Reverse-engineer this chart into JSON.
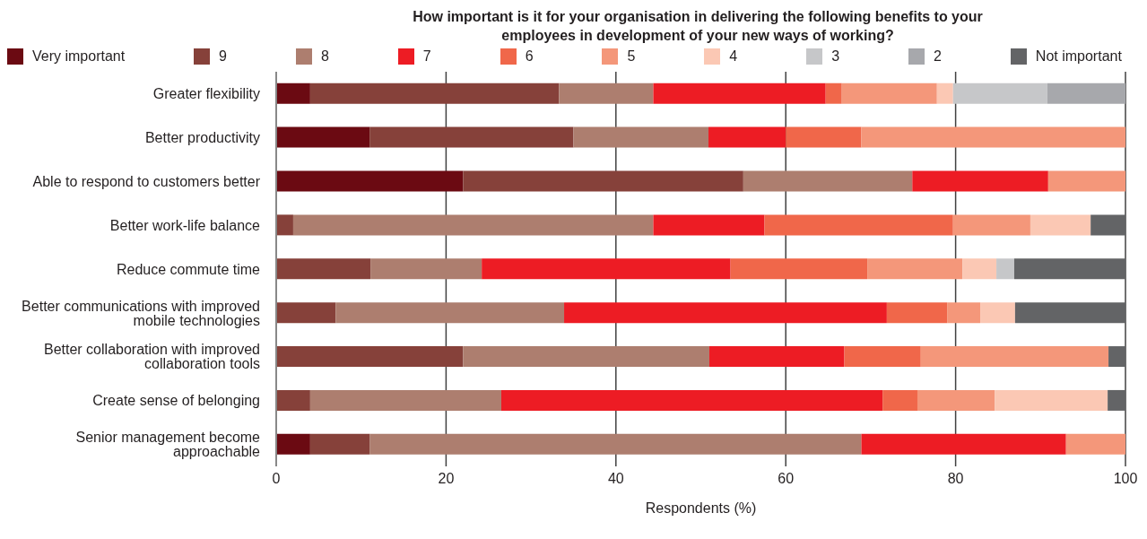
{
  "chart_data": {
    "type": "bar",
    "orientation": "horizontal",
    "stacked": true,
    "title": "How important is it for your organisation in delivering the following benefits to your employees in development of your new ways of working?",
    "xlabel": "Respondents (%)",
    "categories": [
      "Greater flexibility",
      "Better productivity",
      "Able to respond to customers better",
      "Better work-life balance",
      "Reduce commute time",
      "Better communications with improved mobile technologies",
      "Better collaboration with improved collaboration tools",
      "Create sense of belonging",
      "Senior management become approachable"
    ],
    "series": [
      {
        "name": "Very important",
        "color": "#6b0a12",
        "values": [
          4,
          11,
          22,
          0,
          0,
          0,
          0,
          0,
          4
        ]
      },
      {
        "name": "9",
        "color": "#86413a",
        "values": [
          29.3,
          24,
          33,
          2,
          11.1,
          7,
          22,
          4,
          7
        ]
      },
      {
        "name": "8",
        "color": "#ad7e6f",
        "values": [
          11.1,
          15.9,
          19.9,
          42.4,
          13.1,
          26.9,
          29,
          22.5,
          57.9
        ]
      },
      {
        "name": "7",
        "color": "#ed1c24",
        "values": [
          20.3,
          9.1,
          16,
          13.1,
          29.3,
          38,
          15.9,
          44.9,
          24.1
        ]
      },
      {
        "name": "6",
        "color": "#f0674a",
        "values": [
          1.9,
          8.9,
          0,
          22.2,
          16.1,
          7.1,
          9,
          4.1,
          0
        ]
      },
      {
        "name": "5",
        "color": "#f4977a",
        "values": [
          11.2,
          31.1,
          9.1,
          9.1,
          11.2,
          3.9,
          22.1,
          9.1,
          7
        ]
      },
      {
        "name": "4",
        "color": "#fbc8b4",
        "values": [
          1.9,
          0,
          0,
          7.1,
          4,
          4.1,
          0,
          13.3,
          0
        ]
      },
      {
        "name": "3",
        "color": "#c6c7c9",
        "values": [
          11.1,
          0,
          0,
          0,
          2.1,
          0,
          0,
          0,
          0
        ]
      },
      {
        "name": "2",
        "color": "#a7a8ac",
        "values": [
          9.2,
          0,
          0,
          0,
          0,
          0,
          0,
          0,
          0
        ]
      },
      {
        "name": "Not important",
        "color": "#636466",
        "values": [
          0,
          0,
          0,
          4.1,
          13.1,
          13,
          2,
          2.1,
          0
        ]
      }
    ],
    "xlim": [
      0,
      100
    ],
    "xticks": [
      0,
      20,
      40,
      60,
      80,
      100
    ],
    "grid": "x",
    "legend": "top"
  }
}
